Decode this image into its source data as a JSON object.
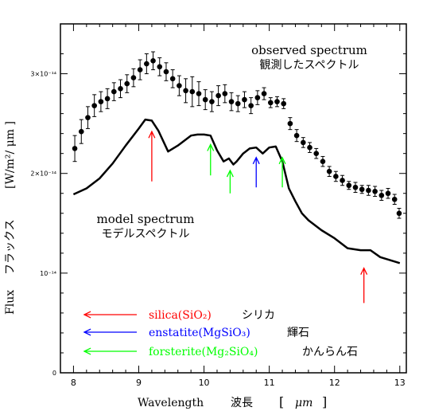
{
  "chart_data": {
    "type": "line",
    "xlabel": "Wavelength",
    "xlabel_jp": "波長",
    "xunit_open": "[",
    "xunit": "μm",
    "xunit_close": "]",
    "ylabel": "Flux",
    "ylabel_jp": "フラックス",
    "yunit": "[W/m²/ μm ]",
    "xlim": [
      7.8,
      13.1
    ],
    "ylim": [
      0,
      3.5e-14
    ],
    "x_ticks": [
      8,
      9,
      10,
      11,
      12,
      13
    ],
    "x_tick_labels": [
      "8",
      "9",
      "10",
      "11",
      "12",
      "13"
    ],
    "y_ticks": [
      0,
      1e-14,
      2e-14,
      3e-14
    ],
    "y_tick_labels": [
      "0",
      "10⁻¹⁴",
      "2×10⁻¹⁴",
      "3×10⁻¹⁴"
    ],
    "series": [
      {
        "name": "observed spectrum",
        "name_jp": "観測したスペクトル",
        "style": "points-with-errorbars",
        "x": [
          8.02,
          8.12,
          8.22,
          8.32,
          8.42,
          8.52,
          8.62,
          8.72,
          8.82,
          8.92,
          9.02,
          9.12,
          9.22,
          9.32,
          9.42,
          9.52,
          9.62,
          9.72,
          9.82,
          9.92,
          10.02,
          10.12,
          10.22,
          10.32,
          10.42,
          10.52,
          10.62,
          10.72,
          10.82,
          10.92,
          11.02,
          11.12,
          11.22,
          11.32,
          11.42,
          11.52,
          11.62,
          11.72,
          11.82,
          11.92,
          12.02,
          12.12,
          12.22,
          12.32,
          12.42,
          12.52,
          12.62,
          12.72,
          12.82,
          12.92,
          12.99
        ],
        "y": [
          2.25e-14,
          2.42e-14,
          2.56e-14,
          2.68e-14,
          2.72e-14,
          2.75e-14,
          2.82e-14,
          2.85e-14,
          2.9e-14,
          2.96e-14,
          3.04e-14,
          3.1e-14,
          3.13e-14,
          3.07e-14,
          3.02e-14,
          2.95e-14,
          2.88e-14,
          2.83e-14,
          2.82e-14,
          2.8e-14,
          2.74e-14,
          2.72e-14,
          2.78e-14,
          2.8e-14,
          2.72e-14,
          2.7e-14,
          2.74e-14,
          2.68e-14,
          2.76e-14,
          2.8e-14,
          2.71e-14,
          2.72e-14,
          2.7e-14,
          2.5e-14,
          2.38e-14,
          2.31e-14,
          2.26e-14,
          2.2e-14,
          2.12e-14,
          2.02e-14,
          1.97e-14,
          1.93e-14,
          1.88e-14,
          1.86e-14,
          1.84e-14,
          1.83e-14,
          1.82e-14,
          1.78e-14,
          1.8e-14,
          1.74e-14,
          1.6e-14
        ],
        "yerr": [
          1.3e-15,
          1.2e-15,
          1.1e-15,
          1.1e-15,
          1e-15,
          1e-15,
          9e-16,
          9e-16,
          9e-16,
          9e-16,
          1e-15,
          1e-15,
          9e-16,
          9e-16,
          9e-16,
          9e-16,
          1e-15,
          1.2e-15,
          1.5e-15,
          1.2e-15,
          1e-15,
          1e-15,
          1e-15,
          9e-16,
          9e-16,
          8e-16,
          8e-16,
          8e-16,
          7e-16,
          6e-16,
          5e-16,
          5e-16,
          5e-16,
          6e-16,
          6e-16,
          5e-16,
          5e-16,
          5e-16,
          5e-16,
          5e-16,
          5e-16,
          5e-16,
          4e-16,
          5e-16,
          4e-16,
          5e-16,
          5e-16,
          5e-16,
          5e-16,
          5e-16,
          5e-16
        ],
        "color": "#000000"
      },
      {
        "name": "model spectrum",
        "name_jp": "モデルスペクトル",
        "style": "line",
        "x": [
          8.0,
          8.2,
          8.4,
          8.6,
          8.8,
          9.0,
          9.1,
          9.2,
          9.3,
          9.45,
          9.6,
          9.8,
          9.9,
          10.0,
          10.1,
          10.2,
          10.3,
          10.38,
          10.45,
          10.5,
          10.6,
          10.7,
          10.8,
          10.9,
          11.0,
          11.1,
          11.2,
          11.3,
          11.4,
          11.5,
          11.6,
          11.8,
          12.0,
          12.2,
          12.4,
          12.55,
          12.7,
          12.85,
          13.0
        ],
        "y": [
          1.79e-14,
          1.85e-14,
          1.95e-14,
          2.1e-14,
          2.28e-14,
          2.45e-14,
          2.54e-14,
          2.53e-14,
          2.43e-14,
          2.22e-14,
          2.28e-14,
          2.38e-14,
          2.39e-14,
          2.39e-14,
          2.38e-14,
          2.23e-14,
          2.12e-14,
          2.15e-14,
          2.09e-14,
          2.12e-14,
          2.2e-14,
          2.25e-14,
          2.26e-14,
          2.2e-14,
          2.26e-14,
          2.27e-14,
          2.12e-14,
          1.85e-14,
          1.72e-14,
          1.6e-14,
          1.53e-14,
          1.43e-14,
          1.35e-14,
          1.25e-14,
          1.23e-14,
          1.23e-14,
          1.16e-14,
          1.13e-14,
          1.1e-14
        ],
        "color": "#000000"
      }
    ],
    "feature_arrows": [
      {
        "x": 9.2,
        "y_from": 1.92e-14,
        "y_to": 2.42e-14,
        "color": "#ff0000",
        "material": "silica"
      },
      {
        "x": 10.1,
        "y_from": 1.98e-14,
        "y_to": 2.29e-14,
        "color": "#00ff00",
        "material": "forsterite"
      },
      {
        "x": 10.4,
        "y_from": 1.8e-14,
        "y_to": 2.03e-14,
        "color": "#00ff00",
        "material": "forsterite"
      },
      {
        "x": 10.8,
        "y_from": 1.86e-14,
        "y_to": 2.16e-14,
        "color": "#0000ff",
        "material": "enstatite"
      },
      {
        "x": 11.2,
        "y_from": 1.86e-14,
        "y_to": 2.16e-14,
        "color": "#00ff00",
        "material": "forsterite"
      },
      {
        "x": 12.45,
        "y_from": 7e-15,
        "y_to": 1.05e-14,
        "color": "#ff0000",
        "material": "silica"
      }
    ],
    "legend": [
      {
        "label": "silica(SiO₂)",
        "label_jp": "シリカ",
        "color": "#ff0000"
      },
      {
        "label": "enstatite(MgSiO₃)",
        "label_jp": "輝石",
        "color": "#0000ff"
      },
      {
        "label": "forsterite(Mg₂SiO₄)",
        "label_jp": "かんらん石",
        "color": "#00ff00"
      }
    ],
    "legend_position": "bottom-left",
    "grid": false
  }
}
